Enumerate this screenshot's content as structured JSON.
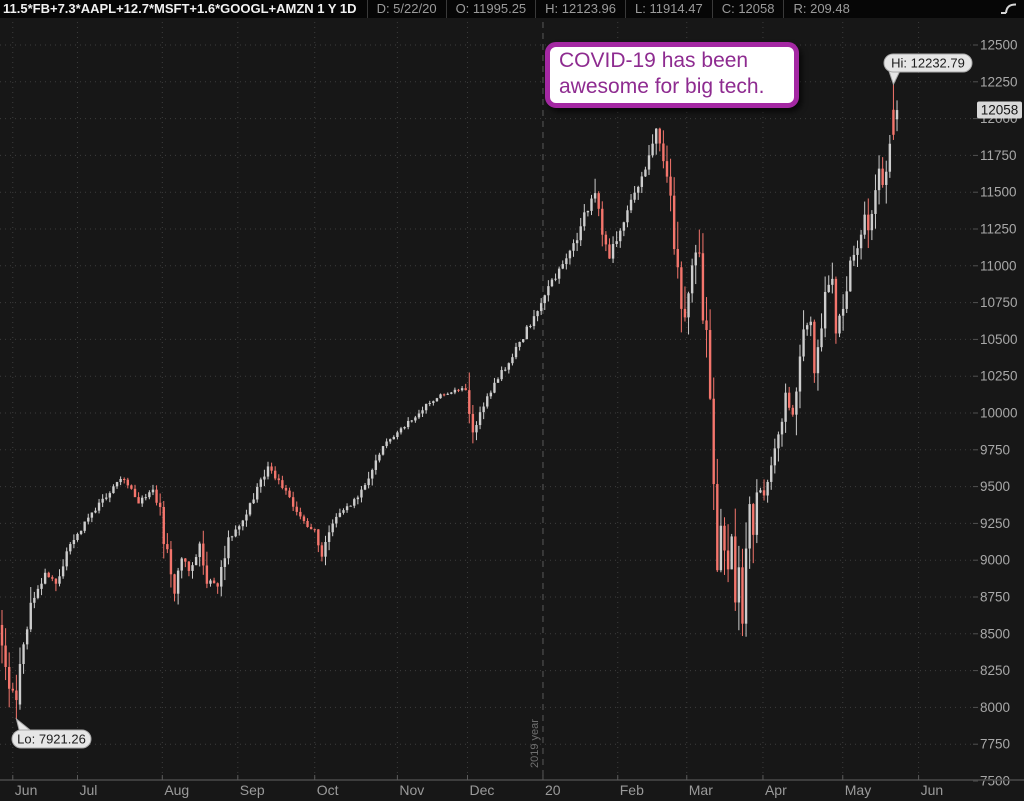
{
  "top_bar": {
    "symbol": "11.5*FB+7.3*AAPL+12.7*MSFT+1.6*GOOGL+AMZN 1 Y 1D",
    "fields": [
      {
        "label": "D",
        "value": "5/22/20"
      },
      {
        "label": "O",
        "value": "11995.25"
      },
      {
        "label": "H",
        "value": "12123.96"
      },
      {
        "label": "L",
        "value": "11914.47"
      },
      {
        "label": "C",
        "value": "12058"
      },
      {
        "label": "R",
        "value": "209.48"
      }
    ]
  },
  "annotation": {
    "lines": [
      "COVID-19 has been",
      "awesome for big tech."
    ],
    "border_color": "#a428a3",
    "text_color": "#8e2b90",
    "background": "#ffffff"
  },
  "markers": {
    "high_label": "Hi: 12232.79",
    "low_label": "Lo: 7921.26",
    "last_price_label": "12058"
  },
  "chart_data": {
    "type": "candlestick",
    "symbol_formula": "11.5*FB+7.3*AAPL+12.7*MSFT+1.6*GOOGL+AMZN",
    "timeframe": "1 Y 1D",
    "bar_count": 250,
    "y_axis": {
      "min": 7500,
      "max": 12500,
      "tick_step": 250,
      "side": "right"
    },
    "x_axis": {
      "months": [
        [
          "Jun",
          3
        ],
        [
          "Jul",
          21
        ],
        [
          "Aug",
          44.6
        ],
        [
          "Sep",
          65.6
        ],
        [
          "Oct",
          87
        ],
        [
          "Nov",
          110
        ],
        [
          "Dec",
          129.5
        ],
        [
          "20",
          150.5
        ],
        [
          "Feb",
          171.3
        ],
        [
          "Mar",
          190.5
        ],
        [
          "Apr",
          211.7
        ],
        [
          "May",
          233.9
        ],
        [
          "Jun",
          255
        ]
      ]
    },
    "year_divider_index": 150.5,
    "year_divider_label": "2019 year",
    "grid": "dotted",
    "period_high": 12232.79,
    "period_low": 7921.26,
    "last_bar": {
      "date": "5/22/20",
      "open": 11995.25,
      "high": 12123.96,
      "low": 11914.47,
      "close": 12058,
      "range": 209.48
    },
    "anchors": [
      [
        0,
        8480
      ],
      [
        2,
        8150
      ],
      [
        4,
        8050
      ],
      [
        5,
        8280
      ],
      [
        8,
        8700
      ],
      [
        12,
        8900
      ],
      [
        15,
        8850
      ],
      [
        18,
        9050
      ],
      [
        21,
        9180
      ],
      [
        26,
        9350
      ],
      [
        31,
        9500
      ],
      [
        34,
        9560
      ],
      [
        38,
        9400
      ],
      [
        42,
        9480
      ],
      [
        44,
        9350
      ],
      [
        45,
        9150
      ],
      [
        48,
        8790
      ],
      [
        50,
        9050
      ],
      [
        52,
        8900
      ],
      [
        55,
        9100
      ],
      [
        57,
        8870
      ],
      [
        60,
        8820
      ],
      [
        63,
        9150
      ],
      [
        66,
        9230
      ],
      [
        69,
        9380
      ],
      [
        74,
        9640
      ],
      [
        78,
        9500
      ],
      [
        82,
        9330
      ],
      [
        85,
        9240
      ],
      [
        87,
        9180
      ],
      [
        89,
        9040
      ],
      [
        92,
        9250
      ],
      [
        95,
        9340
      ],
      [
        98,
        9400
      ],
      [
        102,
        9550
      ],
      [
        106,
        9780
      ],
      [
        110,
        9870
      ],
      [
        114,
        9960
      ],
      [
        118,
        10050
      ],
      [
        122,
        10120
      ],
      [
        126,
        10150
      ],
      [
        129,
        10180
      ],
      [
        131,
        9870
      ],
      [
        133,
        10000
      ],
      [
        137,
        10200
      ],
      [
        141,
        10350
      ],
      [
        145,
        10520
      ],
      [
        149,
        10700
      ],
      [
        152,
        10850
      ],
      [
        156,
        11000
      ],
      [
        160,
        11200
      ],
      [
        163,
        11400
      ],
      [
        165,
        11480
      ],
      [
        167,
        11200
      ],
      [
        169,
        11040
      ],
      [
        171,
        11200
      ],
      [
        174,
        11380
      ],
      [
        177,
        11550
      ],
      [
        180,
        11720
      ],
      [
        182,
        11930
      ],
      [
        184,
        11690
      ],
      [
        186,
        11420
      ],
      [
        188,
        10940
      ],
      [
        190,
        10560
      ],
      [
        192,
        11000
      ],
      [
        193,
        11120
      ],
      [
        194,
        11000
      ],
      [
        195,
        10700
      ],
      [
        196,
        10500
      ],
      [
        197,
        10100
      ],
      [
        198,
        9550
      ],
      [
        199,
        8850
      ],
      [
        200,
        9250
      ],
      [
        201,
        9150
      ],
      [
        202,
        8850
      ],
      [
        203,
        9200
      ],
      [
        204,
        8750
      ],
      [
        205,
        8950
      ],
      [
        206,
        8600
      ],
      [
        207,
        9050
      ],
      [
        208,
        9300
      ],
      [
        209,
        9150
      ],
      [
        210,
        9480
      ],
      [
        212,
        9450
      ],
      [
        215,
        9750
      ],
      [
        218,
        10100
      ],
      [
        220,
        10000
      ],
      [
        223,
        10550
      ],
      [
        225,
        10650
      ],
      [
        226,
        10300
      ],
      [
        229,
        10800
      ],
      [
        231,
        10950
      ],
      [
        232,
        10600
      ],
      [
        234,
        10750
      ],
      [
        236,
        11000
      ],
      [
        238,
        11150
      ],
      [
        240,
        11350
      ],
      [
        241,
        11200
      ],
      [
        242,
        11300
      ],
      [
        243,
        11500
      ],
      [
        244,
        11650
      ],
      [
        245,
        11550
      ],
      [
        246,
        11700
      ],
      [
        247,
        11870
      ],
      [
        248,
        11905
      ],
      [
        249,
        12058
      ]
    ],
    "colors": {
      "up": "#cdcdcd",
      "down": "#f4756c",
      "background": "#171717",
      "grid": "#3d3d3d",
      "year_line": "#585858",
      "axis_line": "#4a4a4a",
      "axis_text": "#a8a8a8",
      "month_text": "#9a9a9a",
      "bubble_bg": "#e6e6e6",
      "bubble_text": "#1c1c1c",
      "price_tag_bg": "#d8d8d8",
      "price_tag_text": "#151515"
    }
  }
}
